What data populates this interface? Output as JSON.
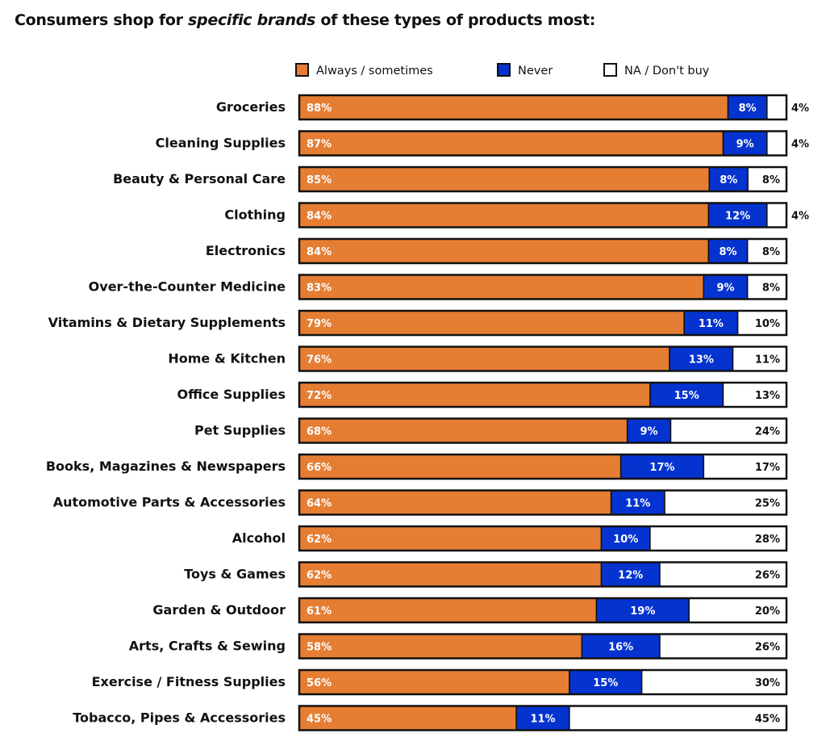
{
  "chart_data": {
    "type": "bar",
    "orientation": "horizontal",
    "stacked": true,
    "title_parts": [
      "Consumers shop for ",
      "specific brands",
      " of these types of products most:"
    ],
    "legend_position": "top",
    "grid": false,
    "unit": "%",
    "categories": [
      "Groceries",
      "Cleaning Supplies",
      "Beauty & Personal Care",
      "Clothing",
      "Electronics",
      "Over-the-Counter Medicine",
      "Vitamins & Dietary Supplements",
      "Home & Kitchen",
      "Office Supplies",
      "Pet Supplies",
      "Books, Magazines & Newspapers",
      "Automotive Parts & Accessories",
      "Alcohol",
      "Toys & Games",
      "Garden & Outdoor",
      "Arts, Crafts & Sewing",
      "Exercise / Fitness Supplies",
      "Tobacco, Pipes & Accessories"
    ],
    "series": [
      {
        "name": "Always / sometimes",
        "color": "#E57E33",
        "values": [
          88,
          87,
          85,
          84,
          84,
          83,
          79,
          76,
          72,
          68,
          66,
          64,
          62,
          62,
          61,
          58,
          56,
          45
        ]
      },
      {
        "name": "Never",
        "color": "#0433D0",
        "values": [
          8,
          9,
          8,
          12,
          8,
          9,
          11,
          13,
          15,
          9,
          17,
          11,
          10,
          12,
          19,
          16,
          15,
          11
        ]
      },
      {
        "name": "NA / Don't buy",
        "color": "#FFFFFF",
        "values": [
          4,
          4,
          8,
          4,
          8,
          8,
          10,
          11,
          13,
          24,
          17,
          25,
          28,
          26,
          20,
          26,
          30,
          45
        ]
      }
    ]
  }
}
